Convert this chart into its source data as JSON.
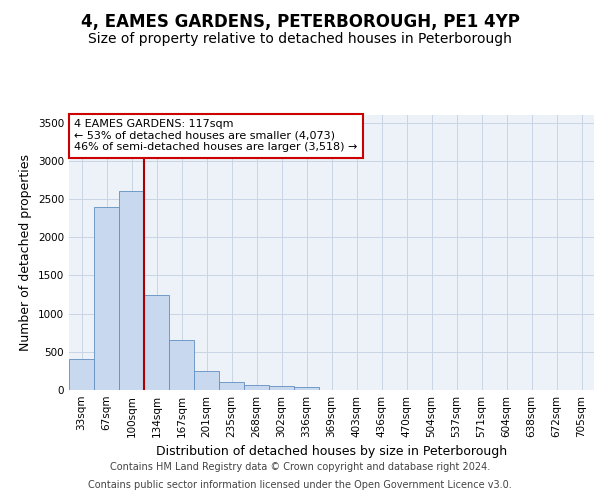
{
  "title": "4, EAMES GARDENS, PETERBOROUGH, PE1 4YP",
  "subtitle": "Size of property relative to detached houses in Peterborough",
  "xlabel": "Distribution of detached houses by size in Peterborough",
  "ylabel": "Number of detached properties",
  "categories": [
    "33sqm",
    "67sqm",
    "100sqm",
    "134sqm",
    "167sqm",
    "201sqm",
    "235sqm",
    "268sqm",
    "302sqm",
    "336sqm",
    "369sqm",
    "403sqm",
    "436sqm",
    "470sqm",
    "504sqm",
    "537sqm",
    "571sqm",
    "604sqm",
    "638sqm",
    "672sqm",
    "705sqm"
  ],
  "values": [
    400,
    2400,
    2600,
    1250,
    650,
    250,
    105,
    65,
    50,
    35,
    5,
    5,
    5,
    5,
    5,
    5,
    5,
    5,
    5,
    5,
    5
  ],
  "bar_color": "#c8d8ee",
  "bar_edgecolor": "#6090c0",
  "grid_color": "#c8d4e4",
  "background_color": "#edf2f9",
  "vline_color": "#aa0000",
  "annotation_text": "4 EAMES GARDENS: 117sqm\n← 53% of detached houses are smaller (4,073)\n46% of semi-detached houses are larger (3,518) →",
  "annotation_box_color": "#ffffff",
  "annotation_box_edgecolor": "#cc0000",
  "ylim": [
    0,
    3600
  ],
  "yticks": [
    0,
    500,
    1000,
    1500,
    2000,
    2500,
    3000,
    3500
  ],
  "footer_line1": "Contains HM Land Registry data © Crown copyright and database right 2024.",
  "footer_line2": "Contains public sector information licensed under the Open Government Licence v3.0.",
  "title_fontsize": 12,
  "subtitle_fontsize": 10,
  "label_fontsize": 9,
  "tick_fontsize": 7.5,
  "footer_fontsize": 7,
  "annot_fontsize": 8
}
